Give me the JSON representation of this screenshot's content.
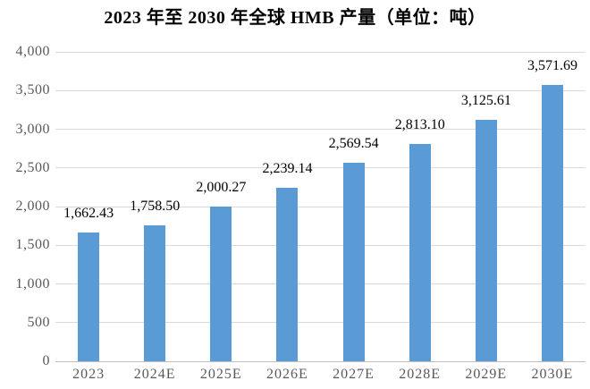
{
  "title": "2023 年至 2030 年全球 HMB 产量（单位：吨）",
  "colors": {
    "bar": "#5B9BD5",
    "gridline": "#D9D9D9",
    "axis_line": "#BFBFBF",
    "axis_label": "#595959",
    "data_label": "#000000",
    "title": "#000000",
    "background": "#FFFFFF"
  },
  "chart_data": {
    "type": "bar",
    "title": "2023 年至 2030 年全球 HMB 产量（单位：吨）",
    "categories": [
      "2023",
      "2024E",
      "2025E",
      "2026E",
      "2027E",
      "2028E",
      "2029E",
      "2030E"
    ],
    "values": [
      1662.43,
      1758.5,
      2000.27,
      2239.14,
      2569.54,
      2813.1,
      3125.61,
      3571.69
    ],
    "data_labels": [
      "1,662.43",
      "1,758.50",
      "2,000.27",
      "2,239.14",
      "2,569.54",
      "2,813.10",
      "3,125.61",
      "3,571.69"
    ],
    "xlabel": "",
    "ylabel": "",
    "ylim": [
      0,
      4000
    ],
    "ytick_interval": 500,
    "yticks": [
      "0",
      "500",
      "1,000",
      "1,500",
      "2,000",
      "2,500",
      "3,000",
      "3,500",
      "4,000"
    ],
    "grid": true,
    "legend": false,
    "data_labels_position": "above-bar"
  }
}
